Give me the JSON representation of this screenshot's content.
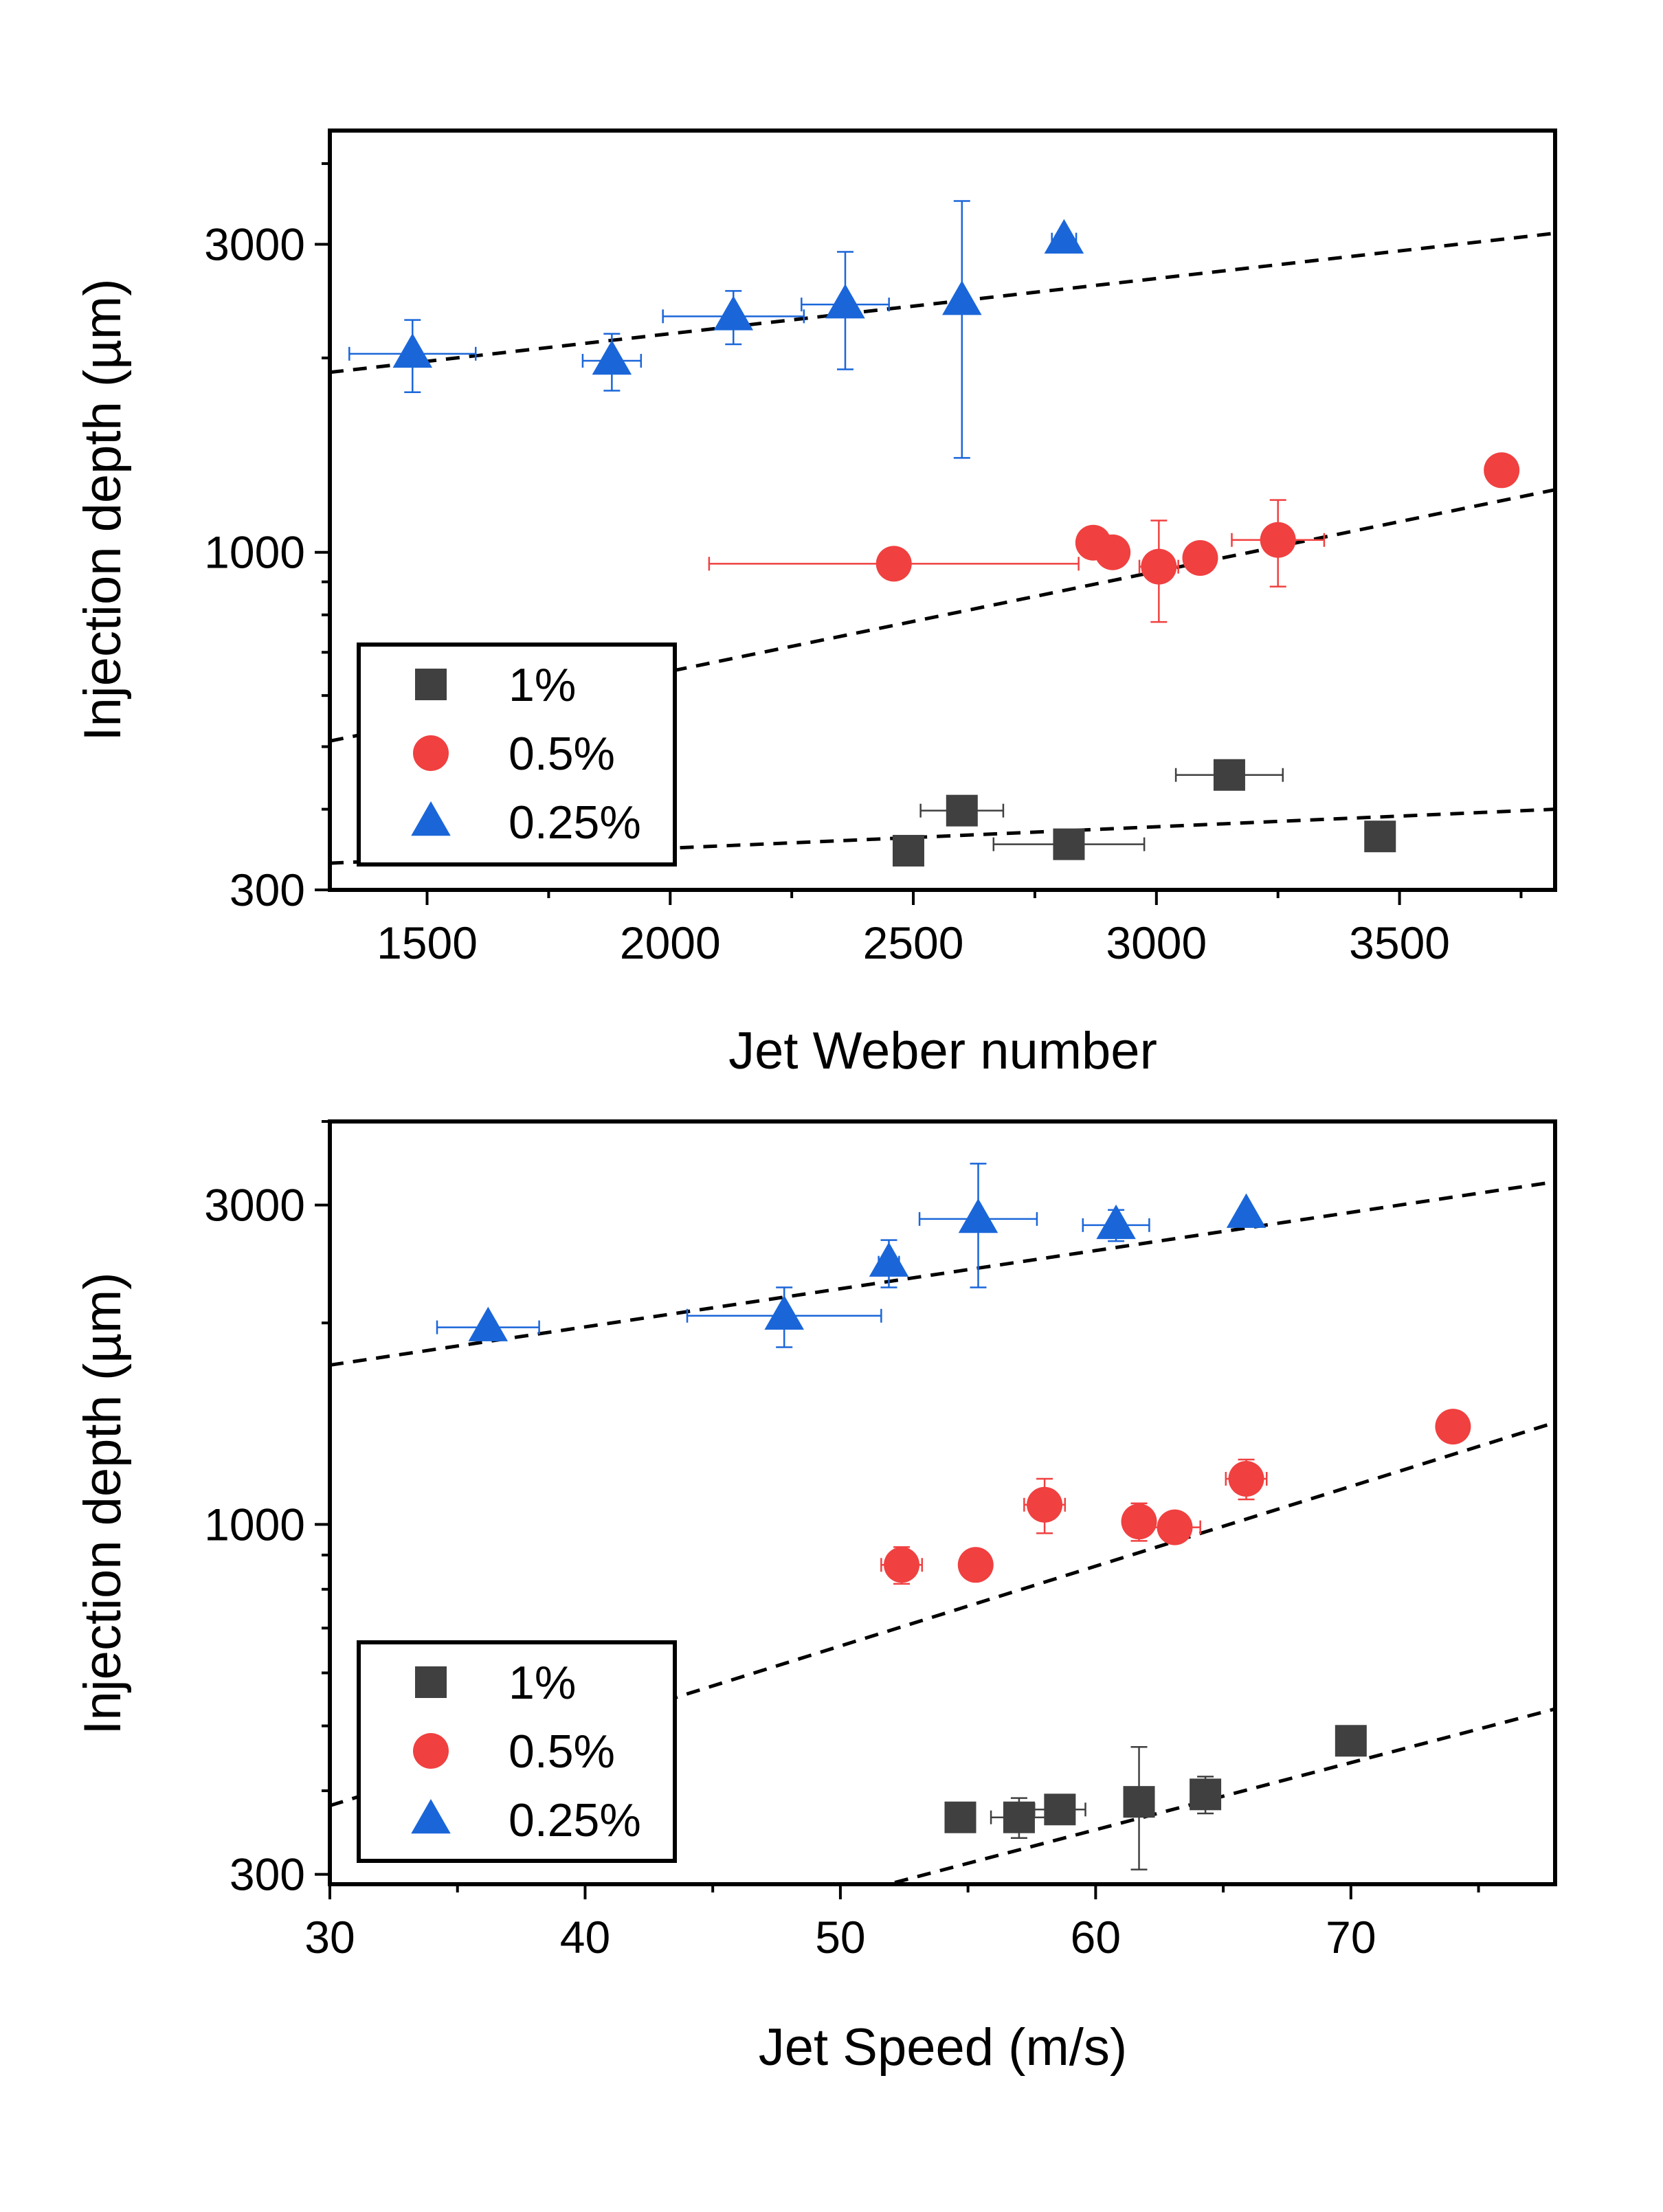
{
  "chart_data": [
    {
      "type": "scatter",
      "xlabel": "Jet Weber number",
      "ylabel": "Injection depth (µm)",
      "y_scale": "log",
      "xlim": [
        1300,
        3820
      ],
      "ylim": [
        300,
        4500
      ],
      "x_ticks": [
        "1500",
        "2000",
        "2500",
        "3000",
        "3500"
      ],
      "x_tick_values": [
        1500,
        2000,
        2500,
        3000,
        3500
      ],
      "y_ticks": [
        "300",
        "1000",
        "3000"
      ],
      "y_tick_values": [
        300,
        1000,
        3000
      ],
      "legend_position": "bottom-left",
      "series": [
        {
          "name": "1%",
          "marker": "square",
          "color": "#404040",
          "points": [
            {
              "x": 2490,
              "y": 345,
              "xerr": 0,
              "yerr": 0
            },
            {
              "x": 2600,
              "y": 398,
              "xerr": 85,
              "yerr": 14
            },
            {
              "x": 2820,
              "y": 353,
              "xerr": 155,
              "yerr": 0
            },
            {
              "x": 3150,
              "y": 452,
              "xerr": 110,
              "yerr": 18
            },
            {
              "x": 3460,
              "y": 363,
              "xerr": 0,
              "yerr": 0
            }
          ],
          "fit": {
            "x": [
              1300,
              3820
            ],
            "y": [
              330,
              400
            ]
          }
        },
        {
          "name": "0.5%",
          "marker": "circle",
          "color": "#f04040",
          "points": [
            {
              "x": 2460,
              "y": 960,
              "xerr": 380,
              "yerr": 0
            },
            {
              "x": 2870,
              "y": 1035,
              "xerr": 20,
              "yerr": 55
            },
            {
              "x": 2910,
              "y": 1000,
              "xerr": 0,
              "yerr": 0
            },
            {
              "x": 3005,
              "y": 950,
              "xerr": 40,
              "yerr": 170
            },
            {
              "x": 3090,
              "y": 980,
              "xerr": 0,
              "yerr": 0
            },
            {
              "x": 3250,
              "y": 1045,
              "xerr": 95,
              "yerr": 160
            },
            {
              "x": 3710,
              "y": 1340,
              "xerr": 0,
              "yerr": 0
            }
          ],
          "fit": {
            "x": [
              1300,
              3820
            ],
            "y": [
              510,
              1250
            ]
          }
        },
        {
          "name": "0.25%",
          "marker": "triangle",
          "color": "#1a66d9",
          "points": [
            {
              "x": 1470,
              "y": 2030,
              "xerr": 130,
              "yerr": 260
            },
            {
              "x": 1880,
              "y": 1980,
              "xerr": 60,
              "yerr": 200
            },
            {
              "x": 2130,
              "y": 2320,
              "xerr": 145,
              "yerr": 220
            },
            {
              "x": 2360,
              "y": 2420,
              "xerr": 90,
              "yerr": 500
            },
            {
              "x": 2600,
              "y": 2450,
              "xerr": 0,
              "yerr": 1050
            },
            {
              "x": 2810,
              "y": 3050,
              "xerr": 25,
              "yerr": 60
            }
          ],
          "fit": {
            "x": [
              1300,
              3820
            ],
            "y": [
              1900,
              3120
            ]
          }
        }
      ]
    },
    {
      "type": "scatter",
      "xlabel": "Jet Speed (m/s)",
      "ylabel": "Injection depth (µm)",
      "y_scale": "log",
      "xlim": [
        30,
        78
      ],
      "ylim": [
        290,
        4000
      ],
      "x_ticks": [
        "30",
        "40",
        "50",
        "60",
        "70"
      ],
      "x_tick_values": [
        30,
        40,
        50,
        60,
        70
      ],
      "y_ticks": [
        "300",
        "1000",
        "3000"
      ],
      "y_tick_values": [
        300,
        1000,
        3000
      ],
      "legend_position": "bottom-left",
      "series": [
        {
          "name": "1%",
          "marker": "square",
          "color": "#404040",
          "points": [
            {
              "x": 54.7,
              "y": 365,
              "xerr": 0,
              "yerr": 0
            },
            {
              "x": 57.0,
              "y": 365,
              "xerr": 1.1,
              "yerr": 25
            },
            {
              "x": 58.6,
              "y": 375,
              "xerr": 1.0,
              "yerr": 18
            },
            {
              "x": 61.7,
              "y": 385,
              "xerr": 0,
              "yerr": 80
            },
            {
              "x": 64.3,
              "y": 395,
              "xerr": 0,
              "yerr": 25
            },
            {
              "x": 70.0,
              "y": 475,
              "xerr": 0,
              "yerr": 0
            }
          ],
          "fit": {
            "x": [
              30,
              78
            ],
            "y": [
              175,
              530
            ]
          }
        },
        {
          "name": "0.5%",
          "marker": "circle",
          "color": "#f04040",
          "points": [
            {
              "x": 52.4,
              "y": 870,
              "xerr": 0.8,
              "yerr": 55
            },
            {
              "x": 55.3,
              "y": 870,
              "xerr": 0,
              "yerr": 40
            },
            {
              "x": 58.0,
              "y": 1070,
              "xerr": 0.8,
              "yerr": 100
            },
            {
              "x": 61.7,
              "y": 1010,
              "xerr": 0.6,
              "yerr": 65
            },
            {
              "x": 63.1,
              "y": 990,
              "xerr": 1.0,
              "yerr": 0
            },
            {
              "x": 65.9,
              "y": 1170,
              "xerr": 0.8,
              "yerr": 80
            },
            {
              "x": 74.0,
              "y": 1400,
              "xerr": 0,
              "yerr": 0
            }
          ],
          "fit": {
            "x": [
              30,
              78
            ],
            "y": [
              380,
              1420
            ]
          }
        },
        {
          "name": "0.25%",
          "marker": "triangle",
          "color": "#1a66d9",
          "points": [
            {
              "x": 36.2,
              "y": 1970,
              "xerr": 2.0,
              "yerr": 40
            },
            {
              "x": 47.8,
              "y": 2050,
              "xerr": 3.8,
              "yerr": 210
            },
            {
              "x": 51.9,
              "y": 2460,
              "xerr": 0.4,
              "yerr": 200
            },
            {
              "x": 55.4,
              "y": 2860,
              "xerr": 2.3,
              "yerr": 600
            },
            {
              "x": 60.8,
              "y": 2800,
              "xerr": 1.3,
              "yerr": 150
            },
            {
              "x": 65.9,
              "y": 2910,
              "xerr": 0,
              "yerr": 0
            }
          ],
          "fit": {
            "x": [
              30,
              78
            ],
            "y": [
              1730,
              3250
            ]
          }
        }
      ]
    }
  ]
}
